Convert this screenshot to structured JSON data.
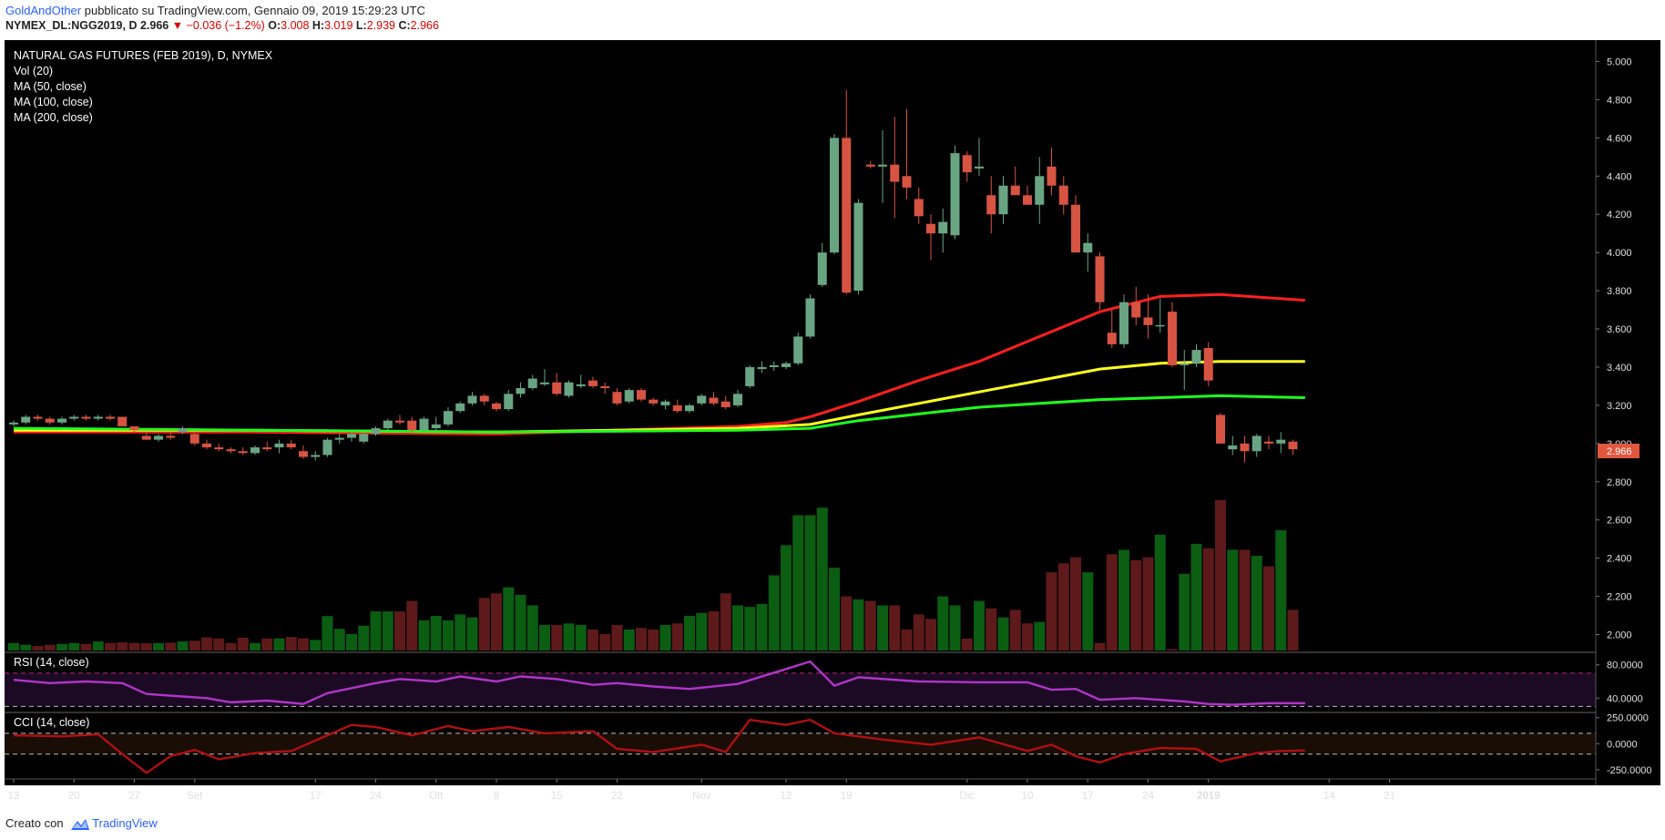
{
  "header": {
    "author": "GoldAndOther",
    "published": "pubblicato su TradingView.com, Gennaio 09, 2019 15:29:23 UTC",
    "symbol": "NYMEX_DL:NGG2019, D",
    "last": "2.966",
    "change": "−0.036 (−1.2%)",
    "o_label": "O:",
    "o": "3.008",
    "h_label": "H:",
    "h": "3.019",
    "l_label": "L:",
    "l": "2.939",
    "c_label": "C:",
    "c": "2.966"
  },
  "legend": {
    "title": "NATURAL GAS FUTURES (FEB 2019), D, NYMEX",
    "vol": "Vol (20)",
    "ma50": "MA (50, close)",
    "ma100": "MA (100, close)",
    "ma200": "MA (200, close)"
  },
  "colors": {
    "bull": "#6aa583",
    "bear": "#d75442",
    "vol_bull": "#0b5d12",
    "vol_bear": "#5e1a1a",
    "ma50": "#ff1f1f",
    "ma100": "#ffff1f",
    "ma200": "#1fff1f",
    "rsi": "#b035c8",
    "cci": "#b01010",
    "price_tag": "#e0573f"
  },
  "price_tag": "2.966",
  "footer": {
    "label": "Creato con",
    "brand": "TradingView"
  },
  "chart_data": {
    "type": "candlestick",
    "title": "NATURAL GAS FUTURES (FEB 2019), D, NYMEX",
    "x_ticks": [
      "13",
      "20",
      "27",
      "Set",
      "17",
      "24",
      "Ott",
      "8",
      "15",
      "22",
      "Nov",
      "12",
      "19",
      "Dic",
      "10",
      "17",
      "24",
      "2019",
      "14",
      "21"
    ],
    "x_tick_index": [
      0,
      5,
      10,
      15,
      25,
      30,
      35,
      40,
      45,
      50,
      57,
      64,
      69,
      79,
      84,
      89,
      94,
      99,
      109,
      114
    ],
    "y_ticks": [
      5.0,
      4.8,
      4.6,
      4.4,
      4.2,
      4.0,
      3.8,
      3.6,
      3.4,
      3.2,
      3.0,
      2.8,
      2.6,
      2.4,
      2.2,
      2.0
    ],
    "ylim": [
      1.95,
      5.05
    ],
    "candles": [
      [
        3.1,
        3.12,
        3.09,
        3.11
      ],
      [
        3.11,
        3.15,
        3.1,
        3.14
      ],
      [
        3.14,
        3.15,
        3.12,
        3.13
      ],
      [
        3.13,
        3.14,
        3.1,
        3.11
      ],
      [
        3.11,
        3.14,
        3.1,
        3.13
      ],
      [
        3.13,
        3.15,
        3.12,
        3.14
      ],
      [
        3.14,
        3.15,
        3.12,
        3.13
      ],
      [
        3.13,
        3.15,
        3.12,
        3.14
      ],
      [
        3.14,
        3.15,
        3.12,
        3.13
      ],
      [
        3.14,
        3.14,
        3.09,
        3.09
      ],
      [
        3.09,
        3.09,
        3.06,
        3.07
      ],
      [
        3.04,
        3.06,
        3.02,
        3.02
      ],
      [
        3.02,
        3.05,
        3.01,
        3.04
      ],
      [
        3.04,
        3.06,
        3.02,
        3.03
      ],
      [
        3.06,
        3.09,
        3.05,
        3.08
      ],
      [
        3.05,
        3.06,
        2.99,
        3.0
      ],
      [
        3.0,
        3.02,
        2.97,
        2.98
      ],
      [
        2.98,
        3.0,
        2.96,
        2.97
      ],
      [
        2.97,
        2.98,
        2.95,
        2.96
      ],
      [
        2.96,
        2.98,
        2.94,
        2.95
      ],
      [
        2.95,
        2.99,
        2.94,
        2.98
      ],
      [
        2.98,
        3.01,
        2.96,
        2.97
      ],
      [
        2.98,
        3.02,
        2.95,
        3.0
      ],
      [
        3.0,
        3.02,
        2.97,
        2.98
      ],
      [
        2.96,
        2.99,
        2.92,
        2.93
      ],
      [
        2.93,
        2.96,
        2.91,
        2.94
      ],
      [
        2.94,
        3.03,
        2.93,
        3.02
      ],
      [
        3.02,
        3.05,
        3.0,
        3.03
      ],
      [
        3.03,
        3.06,
        3.01,
        3.05
      ],
      [
        3.01,
        3.06,
        3.0,
        3.05
      ],
      [
        3.05,
        3.09,
        3.04,
        3.08
      ],
      [
        3.08,
        3.13,
        3.07,
        3.12
      ],
      [
        3.12,
        3.15,
        3.1,
        3.11
      ],
      [
        3.12,
        3.14,
        3.05,
        3.07
      ],
      [
        3.07,
        3.14,
        3.06,
        3.13
      ],
      [
        3.08,
        3.14,
        3.06,
        3.1
      ],
      [
        3.1,
        3.19,
        3.09,
        3.17
      ],
      [
        3.17,
        3.22,
        3.16,
        3.21
      ],
      [
        3.21,
        3.27,
        3.2,
        3.25
      ],
      [
        3.25,
        3.26,
        3.2,
        3.22
      ],
      [
        3.21,
        3.22,
        3.17,
        3.18
      ],
      [
        3.18,
        3.28,
        3.17,
        3.26
      ],
      [
        3.26,
        3.32,
        3.24,
        3.29
      ],
      [
        3.29,
        3.36,
        3.28,
        3.34
      ],
      [
        3.31,
        3.39,
        3.3,
        3.32
      ],
      [
        3.32,
        3.37,
        3.25,
        3.26
      ],
      [
        3.25,
        3.33,
        3.24,
        3.32
      ],
      [
        3.3,
        3.36,
        3.29,
        3.31
      ],
      [
        3.33,
        3.35,
        3.29,
        3.3
      ],
      [
        3.3,
        3.32,
        3.26,
        3.29
      ],
      [
        3.27,
        3.29,
        3.2,
        3.21
      ],
      [
        3.22,
        3.29,
        3.21,
        3.28
      ],
      [
        3.28,
        3.29,
        3.22,
        3.23
      ],
      [
        3.23,
        3.24,
        3.2,
        3.21
      ],
      [
        3.2,
        3.23,
        3.18,
        3.22
      ],
      [
        3.2,
        3.23,
        3.16,
        3.17
      ],
      [
        3.17,
        3.21,
        3.16,
        3.2
      ],
      [
        3.21,
        3.26,
        3.2,
        3.25
      ],
      [
        3.24,
        3.27,
        3.2,
        3.21
      ],
      [
        3.22,
        3.25,
        3.18,
        3.19
      ],
      [
        3.2,
        3.28,
        3.19,
        3.26
      ],
      [
        3.3,
        3.41,
        3.29,
        3.4
      ],
      [
        3.39,
        3.43,
        3.37,
        3.4
      ],
      [
        3.4,
        3.43,
        3.38,
        3.41
      ],
      [
        3.4,
        3.43,
        3.39,
        3.42
      ],
      [
        3.42,
        3.58,
        3.41,
        3.56
      ],
      [
        3.56,
        3.78,
        3.55,
        3.76
      ],
      [
        3.83,
        4.05,
        3.82,
        4.0
      ],
      [
        4.0,
        4.62,
        3.99,
        4.6
      ],
      [
        4.6,
        4.85,
        3.78,
        3.79
      ],
      [
        3.8,
        4.28,
        3.78,
        4.26
      ],
      [
        4.46,
        4.48,
        4.44,
        4.45
      ],
      [
        4.45,
        4.64,
        4.26,
        4.46
      ],
      [
        4.46,
        4.71,
        4.18,
        4.37
      ],
      [
        4.4,
        4.75,
        4.28,
        4.34
      ],
      [
        4.28,
        4.34,
        4.15,
        4.19
      ],
      [
        4.15,
        4.2,
        3.96,
        4.1
      ],
      [
        4.1,
        4.23,
        4.0,
        4.16
      ],
      [
        4.09,
        4.56,
        4.07,
        4.52
      ],
      [
        4.51,
        4.53,
        4.37,
        4.42
      ],
      [
        4.44,
        4.6,
        4.4,
        4.45
      ],
      [
        4.3,
        4.4,
        4.1,
        4.2
      ],
      [
        4.2,
        4.4,
        4.15,
        4.35
      ],
      [
        4.35,
        4.45,
        4.3,
        4.3
      ],
      [
        4.3,
        4.35,
        4.25,
        4.25
      ],
      [
        4.25,
        4.5,
        4.15,
        4.4
      ],
      [
        4.45,
        4.55,
        4.3,
        4.35
      ],
      [
        4.35,
        4.4,
        4.2,
        4.25
      ],
      [
        4.25,
        4.3,
        4.0,
        4.0
      ],
      [
        4.0,
        4.1,
        3.9,
        4.05
      ],
      [
        3.98,
        4.0,
        3.7,
        3.74
      ],
      [
        3.58,
        3.7,
        3.5,
        3.52
      ],
      [
        3.52,
        3.78,
        3.5,
        3.74
      ],
      [
        3.74,
        3.82,
        3.62,
        3.66
      ],
      [
        3.66,
        3.78,
        3.55,
        3.62
      ],
      [
        3.62,
        3.76,
        3.58,
        3.62
      ],
      [
        3.69,
        3.74,
        3.4,
        3.41
      ],
      [
        3.41,
        3.49,
        3.28,
        3.42
      ],
      [
        3.42,
        3.52,
        3.4,
        3.49
      ],
      [
        3.5,
        3.53,
        3.3,
        3.33
      ],
      [
        3.15,
        3.16,
        3.0,
        3.0
      ],
      [
        2.97,
        3.04,
        2.94,
        2.99
      ],
      [
        3.0,
        3.04,
        2.9,
        2.96
      ],
      [
        2.96,
        3.05,
        2.93,
        3.04
      ],
      [
        3.01,
        3.04,
        2.97,
        3.0
      ],
      [
        3.0,
        3.06,
        2.95,
        3.02
      ],
      [
        3.01,
        3.02,
        2.94,
        2.97
      ]
    ],
    "volume": [
      0.05,
      0.038,
      0.03,
      0.038,
      0.044,
      0.05,
      0.044,
      0.06,
      0.05,
      0.054,
      0.05,
      0.048,
      0.05,
      0.052,
      0.06,
      0.065,
      0.087,
      0.08,
      0.05,
      0.085,
      0.05,
      0.08,
      0.08,
      0.09,
      0.08,
      0.07,
      0.229,
      0.144,
      0.11,
      0.165,
      0.26,
      0.26,
      0.26,
      0.33,
      0.2,
      0.23,
      0.2,
      0.24,
      0.22,
      0.35,
      0.38,
      0.42,
      0.37,
      0.3,
      0.17,
      0.17,
      0.18,
      0.17,
      0.14,
      0.11,
      0.17,
      0.14,
      0.15,
      0.14,
      0.17,
      0.18,
      0.23,
      0.25,
      0.26,
      0.38,
      0.3,
      0.29,
      0.31,
      0.5,
      0.7,
      0.9,
      0.9,
      0.95,
      0.55,
      0.36,
      0.34,
      0.33,
      0.3,
      0.3,
      0.14,
      0.24,
      0.21,
      0.36,
      0.3,
      0.08,
      0.33,
      0.28,
      0.22,
      0.27,
      0.18,
      0.19,
      0.52,
      0.58,
      0.62,
      0.52,
      0.05,
      0.64,
      0.67,
      0.6,
      0.62,
      0.77,
      0.01,
      0.51,
      0.71,
      0.68,
      1.0,
      0.67,
      0.67,
      0.63,
      0.56,
      0.8,
      0.27
    ],
    "ma50": [
      [
        0,
        3.06
      ],
      [
        20,
        3.06
      ],
      [
        40,
        3.05
      ],
      [
        60,
        3.09
      ],
      [
        64,
        3.11
      ],
      [
        66,
        3.14
      ],
      [
        70,
        3.22
      ],
      [
        75,
        3.33
      ],
      [
        80,
        3.43
      ],
      [
        85,
        3.56
      ],
      [
        90,
        3.69
      ],
      [
        95,
        3.77
      ],
      [
        100,
        3.78
      ],
      [
        107,
        3.75
      ]
    ],
    "ma100": [
      [
        0,
        3.07
      ],
      [
        20,
        3.07
      ],
      [
        40,
        3.06
      ],
      [
        60,
        3.08
      ],
      [
        66,
        3.1
      ],
      [
        70,
        3.15
      ],
      [
        80,
        3.27
      ],
      [
        90,
        3.39
      ],
      [
        95,
        3.42
      ],
      [
        100,
        3.43
      ],
      [
        107,
        3.43
      ]
    ],
    "ma200": [
      [
        0,
        3.08
      ],
      [
        20,
        3.07
      ],
      [
        40,
        3.06
      ],
      [
        60,
        3.07
      ],
      [
        66,
        3.08
      ],
      [
        70,
        3.12
      ],
      [
        80,
        3.19
      ],
      [
        90,
        3.23
      ],
      [
        95,
        3.24
      ],
      [
        100,
        3.25
      ],
      [
        107,
        3.24
      ]
    ],
    "rsi": {
      "label": "RSI (14, close)",
      "ticks": [
        80,
        40
      ],
      "tick_labels": [
        "80.0000",
        "40.0000"
      ],
      "upper": 70,
      "lower": 30,
      "ylim": [
        25,
        95
      ],
      "points": [
        [
          0,
          62
        ],
        [
          3,
          58
        ],
        [
          6,
          60
        ],
        [
          9,
          58
        ],
        [
          11,
          45
        ],
        [
          14,
          42
        ],
        [
          16,
          40
        ],
        [
          18,
          35
        ],
        [
          21,
          37
        ],
        [
          24,
          33
        ],
        [
          26,
          46
        ],
        [
          28,
          52
        ],
        [
          30,
          58
        ],
        [
          32,
          63
        ],
        [
          35,
          60
        ],
        [
          37,
          66
        ],
        [
          40,
          60
        ],
        [
          42,
          66
        ],
        [
          45,
          63
        ],
        [
          48,
          56
        ],
        [
          50,
          58
        ],
        [
          53,
          54
        ],
        [
          56,
          51
        ],
        [
          60,
          57
        ],
        [
          64,
          75
        ],
        [
          66,
          84
        ],
        [
          68,
          55
        ],
        [
          70,
          65
        ],
        [
          75,
          60
        ],
        [
          80,
          59
        ],
        [
          84,
          59
        ],
        [
          86,
          50
        ],
        [
          88,
          51
        ],
        [
          90,
          38
        ],
        [
          93,
          40
        ],
        [
          95,
          38
        ],
        [
          97,
          36
        ],
        [
          99,
          33
        ],
        [
          101,
          32
        ],
        [
          104,
          34
        ],
        [
          107,
          34
        ]
      ]
    },
    "cci": {
      "label": "CCI (14, close)",
      "ticks": [
        250,
        0,
        -250
      ],
      "tick_labels": [
        "250.0000",
        "0.0000",
        "-250.0000"
      ],
      "upper": 100,
      "lower": -100,
      "ylim": [
        -330,
        300
      ],
      "points": [
        [
          0,
          80
        ],
        [
          4,
          70
        ],
        [
          7,
          90
        ],
        [
          9,
          -100
        ],
        [
          11,
          -280
        ],
        [
          13,
          -120
        ],
        [
          15,
          -60
        ],
        [
          17,
          -150
        ],
        [
          20,
          -90
        ],
        [
          23,
          -70
        ],
        [
          26,
          80
        ],
        [
          28,
          180
        ],
        [
          30,
          160
        ],
        [
          33,
          80
        ],
        [
          36,
          170
        ],
        [
          38,
          120
        ],
        [
          41,
          160
        ],
        [
          44,
          100
        ],
        [
          48,
          120
        ],
        [
          50,
          -50
        ],
        [
          53,
          -80
        ],
        [
          57,
          -10
        ],
        [
          59,
          -80
        ],
        [
          61,
          230
        ],
        [
          64,
          180
        ],
        [
          66,
          230
        ],
        [
          68,
          100
        ],
        [
          72,
          40
        ],
        [
          76,
          -10
        ],
        [
          80,
          60
        ],
        [
          84,
          -70
        ],
        [
          86,
          -10
        ],
        [
          88,
          -120
        ],
        [
          90,
          -180
        ],
        [
          92,
          -100
        ],
        [
          95,
          -40
        ],
        [
          98,
          -50
        ],
        [
          100,
          -170
        ],
        [
          103,
          -90
        ],
        [
          105,
          -70
        ],
        [
          107,
          -65
        ]
      ]
    }
  }
}
